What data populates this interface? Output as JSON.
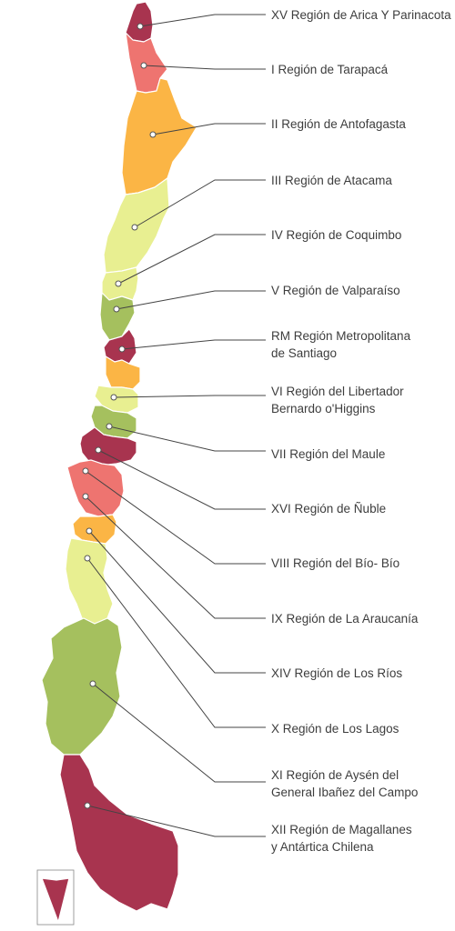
{
  "colors": {
    "dark_red": "#a8344f",
    "salmon": "#ee7470",
    "orange": "#fbb545",
    "light_yellow": "#e8ef91",
    "olive": "#a5c05e",
    "leader": "#444444"
  },
  "regions": [
    {
      "lines": [
        "XV Región de Arica Y Parinacota"
      ],
      "color": "dark_red"
    },
    {
      "lines": [
        "I Región de Tarapacá"
      ],
      "color": "salmon"
    },
    {
      "lines": [
        "II Región de Antofagasta"
      ],
      "color": "orange"
    },
    {
      "lines": [
        "III Región de Atacama"
      ],
      "color": "light_yellow"
    },
    {
      "lines": [
        "IV Región de Coquimbo"
      ],
      "color": "light_yellow"
    },
    {
      "lines": [
        "V Región de Valparaíso"
      ],
      "color": "olive"
    },
    {
      "lines": [
        "RM Región Metropolitana",
        "de Santiago"
      ],
      "color": "dark_red"
    },
    {
      "lines": [
        "VI Región del Libertador",
        "Bernardo o'Higgins"
      ],
      "color": "orange"
    },
    {
      "lines": [
        "VII Región del Maule"
      ],
      "color": "light_yellow"
    },
    {
      "lines": [
        "XVI Región de Ñuble"
      ],
      "color": "olive"
    },
    {
      "lines": [
        "VIII Región del Bío- Bío"
      ],
      "color": "dark_red"
    },
    {
      "lines": [
        "IX Región de La Araucanía"
      ],
      "color": "salmon"
    },
    {
      "lines": [
        "XIV Región de Los Ríos"
      ],
      "color": "orange"
    },
    {
      "lines": [
        "X Región de Los Lagos"
      ],
      "color": "light_yellow"
    },
    {
      "lines": [
        "XI Región de Aysén del",
        "General Ibañez del Campo"
      ],
      "color": "olive"
    },
    {
      "lines": [
        "XII Región de Magallanes",
        "y Antártica Chilena"
      ],
      "color": "dark_red"
    }
  ]
}
